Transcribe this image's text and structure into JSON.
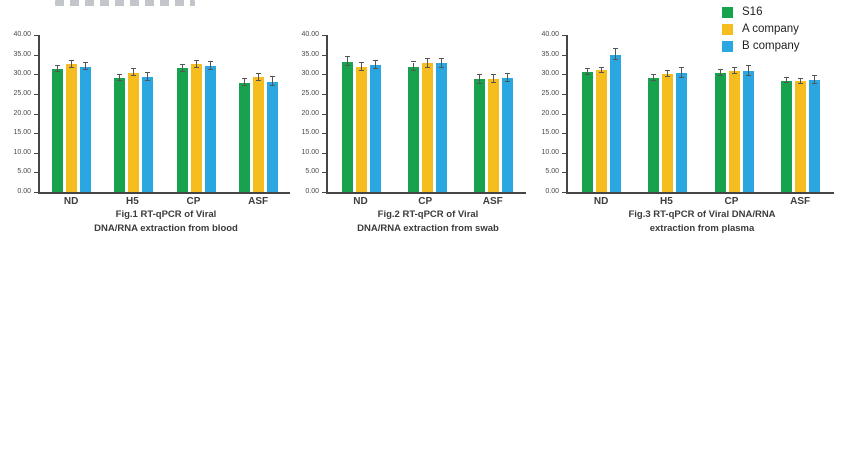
{
  "page": {
    "background": "#ffffff"
  },
  "legend": {
    "items": [
      {
        "label": "S16",
        "color": "#17A24D"
      },
      {
        "label": "A company",
        "color": "#F5BE1E"
      },
      {
        "label": "B company",
        "color": "#2AA7E0"
      }
    ],
    "position": "top-right"
  },
  "chart_data": [
    {
      "type": "bar",
      "title": "Fig.1 RT-qPCR of Viral DNA/RNA extraction from blood",
      "caption_lines": [
        "Fig.1 RT-qPCR of Viral",
        "DNA/RNA extraction from blood"
      ],
      "categories": [
        "ND",
        "H5",
        "CP",
        "ASF"
      ],
      "series": [
        {
          "name": "S16",
          "color": "#17A24D",
          "values": [
            31.3,
            29.1,
            31.5,
            27.8
          ],
          "errors": [
            0.8,
            0.8,
            0.8,
            0.9
          ]
        },
        {
          "name": "A company",
          "color": "#F5BE1E",
          "values": [
            32.5,
            30.4,
            32.5,
            29.2
          ],
          "errors": [
            0.8,
            0.9,
            0.8,
            0.8
          ]
        },
        {
          "name": "B company",
          "color": "#2AA7E0",
          "values": [
            31.9,
            29.3,
            32.0,
            28.1
          ],
          "errors": [
            0.9,
            1.1,
            1.0,
            1.2
          ]
        }
      ],
      "xlabel": "",
      "ylabel": "",
      "ylim": [
        0,
        40
      ],
      "yticks": [
        "40.00",
        "35.00",
        "30.00",
        "25.00",
        "20.00",
        "15.00",
        "10.00",
        "5.00",
        "0.00"
      ],
      "grid": false
    },
    {
      "type": "bar",
      "title": "Fig.2 RT-qPCR of Viral DNA/RNA extraction from swab",
      "caption_lines": [
        "Fig.2 RT-qPCR of Viral",
        "DNA/RNA extraction from swab"
      ],
      "categories": [
        "ND",
        "CP",
        "ASF"
      ],
      "series": [
        {
          "name": "S16",
          "color": "#17A24D",
          "values": [
            33.2,
            31.9,
            28.7
          ],
          "errors": [
            1.2,
            1.1,
            1.1
          ]
        },
        {
          "name": "A company",
          "color": "#F5BE1E",
          "values": [
            31.8,
            32.8,
            28.9
          ],
          "errors": [
            1.0,
            1.2,
            1.0
          ]
        },
        {
          "name": "B company",
          "color": "#2AA7E0",
          "values": [
            32.4,
            32.8,
            29.1
          ],
          "errors": [
            1.1,
            1.1,
            1.0
          ]
        }
      ],
      "xlabel": "",
      "ylabel": "",
      "ylim": [
        0,
        40
      ],
      "yticks": [
        "40.00",
        "35.00",
        "30.00",
        "25.00",
        "20.00",
        "15.00",
        "10.00",
        "5.00",
        "0.00"
      ],
      "grid": false
    },
    {
      "type": "bar",
      "title": "Fig.3 RT-qPCR of Viral DNA/RNA extraction from plasma",
      "caption_lines": [
        "Fig.3 RT-qPCR of Viral DNA/RNA",
        "extraction from plasma"
      ],
      "categories": [
        "ND",
        "H5",
        "CP",
        "ASF"
      ],
      "series": [
        {
          "name": "S16",
          "color": "#17A24D",
          "values": [
            30.6,
            29.0,
            30.4,
            28.4
          ],
          "errors": [
            0.7,
            0.8,
            0.8,
            0.6
          ]
        },
        {
          "name": "A company",
          "color": "#F5BE1E",
          "values": [
            31.0,
            30.1,
            30.9,
            28.2
          ],
          "errors": [
            0.7,
            0.8,
            0.8,
            0.7
          ]
        },
        {
          "name": "B company",
          "color": "#2AA7E0",
          "values": [
            35.0,
            30.4,
            30.8,
            28.5
          ],
          "errors": [
            1.4,
            1.3,
            1.3,
            1.1
          ]
        }
      ],
      "xlabel": "",
      "ylabel": "",
      "ylim": [
        0,
        40
      ],
      "yticks": [
        "40.00",
        "35.00",
        "30.00",
        "25.00",
        "20.00",
        "15.00",
        "10.00",
        "5.00",
        "0.00"
      ],
      "grid": false
    }
  ]
}
